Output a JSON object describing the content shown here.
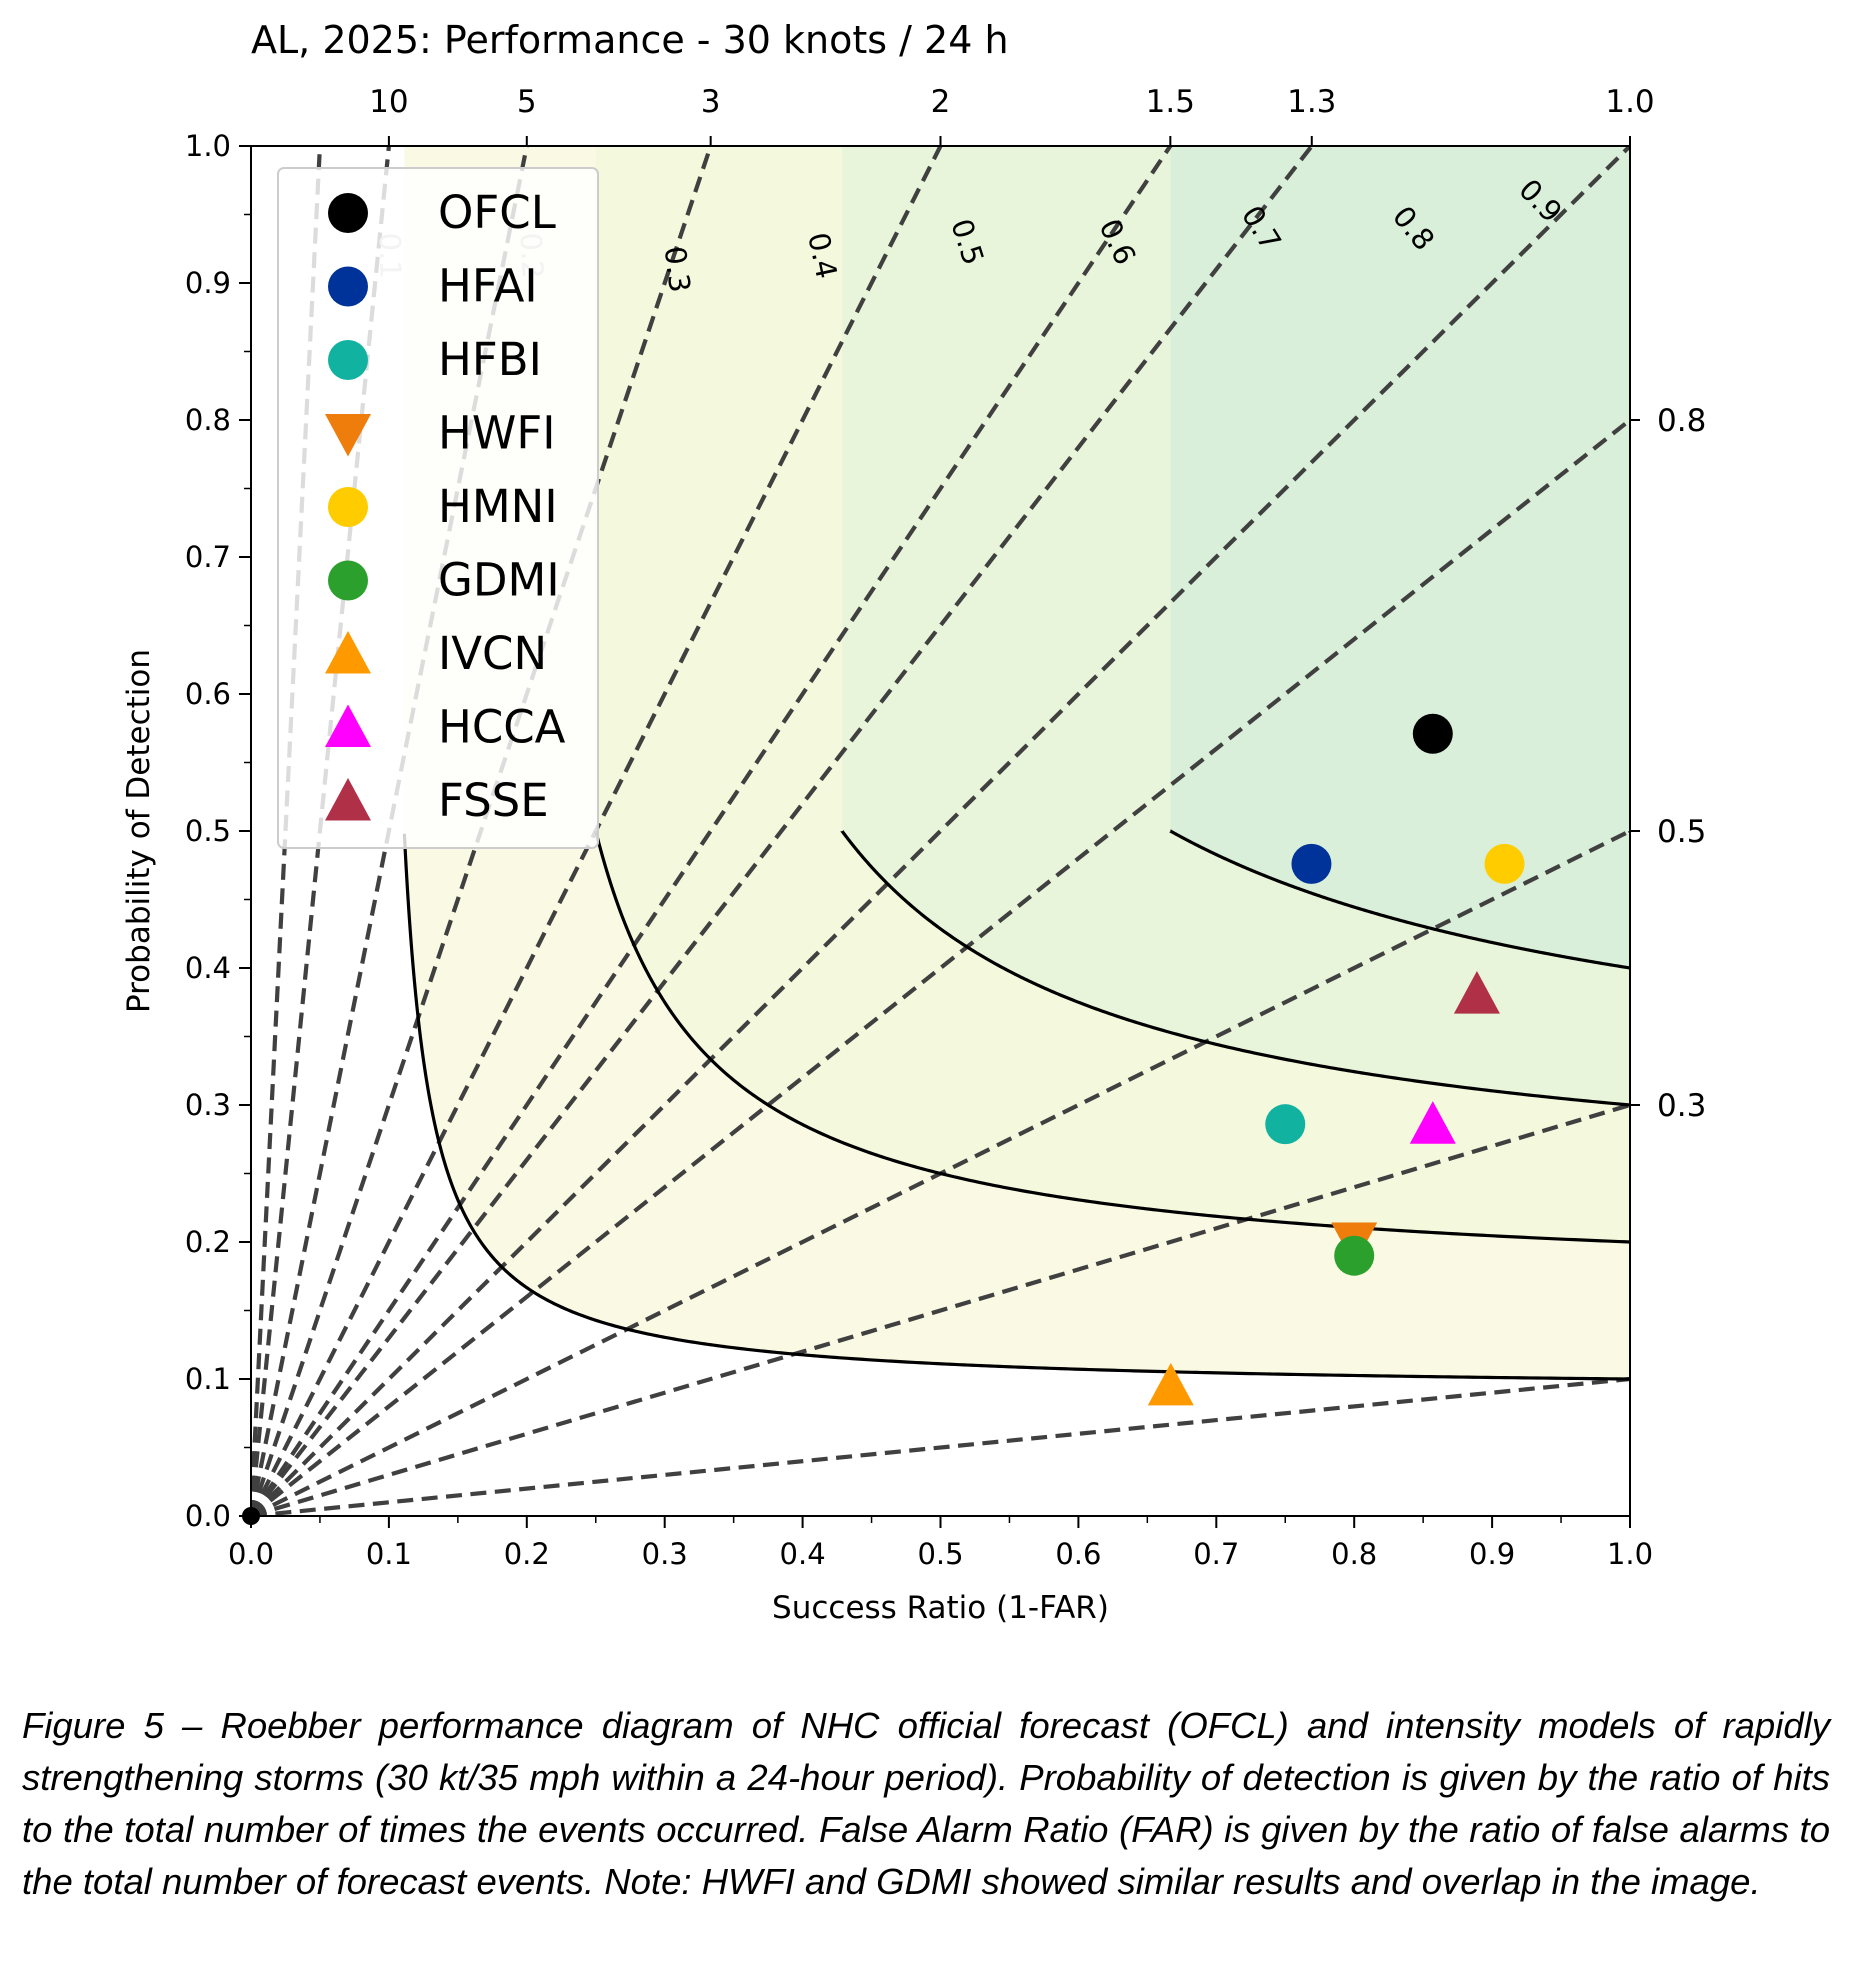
{
  "chart_data": {
    "type": "scatter",
    "subtype": "performance-diagram",
    "title": "AL, 2025: Performance - 30 knots / 24 h",
    "xlabel": "Success Ratio (1-FAR)",
    "ylabel": "Probability of Detection",
    "xlim": [
      0,
      1
    ],
    "ylim": [
      0,
      1
    ],
    "x_ticks": [
      "0.0",
      "0.1",
      "0.2",
      "0.3",
      "0.4",
      "0.5",
      "0.6",
      "0.7",
      "0.8",
      "0.9",
      "1.0"
    ],
    "y_ticks": [
      "0.0",
      "0.1",
      "0.2",
      "0.3",
      "0.4",
      "0.5",
      "0.6",
      "0.7",
      "0.8",
      "0.9",
      "1.0"
    ],
    "csi_contours": [
      {
        "value": 0.1,
        "label": "0.1"
      },
      {
        "value": 0.2,
        "label": "0.2"
      },
      {
        "value": 0.3,
        "label": "0.3"
      },
      {
        "value": 0.4,
        "label": "0.4"
      },
      {
        "value": 0.5,
        "label": "0.5"
      },
      {
        "value": 0.6,
        "label": "0.6"
      },
      {
        "value": 0.7,
        "label": "0.7"
      },
      {
        "value": 0.8,
        "label": "0.8"
      },
      {
        "value": 0.9,
        "label": "0.9"
      }
    ],
    "bias_lines": [
      {
        "value": 10,
        "label": "10",
        "axis": "top"
      },
      {
        "value": 5,
        "label": "5",
        "axis": "top"
      },
      {
        "value": 3,
        "label": "3",
        "axis": "top"
      },
      {
        "value": 2,
        "label": "2",
        "axis": "top"
      },
      {
        "value": 1.5,
        "label": "1.5",
        "axis": "top"
      },
      {
        "value": 1.3,
        "label": "1.3",
        "axis": "top"
      },
      {
        "value": 1.0,
        "label": "1.0",
        "axis": "top"
      },
      {
        "value": 0.8,
        "label": "0.8",
        "axis": "right"
      },
      {
        "value": 0.5,
        "label": "0.5",
        "axis": "right"
      },
      {
        "value": 0.3,
        "label": "0.3",
        "axis": "right"
      },
      {
        "value": 20,
        "label": "",
        "axis": "none"
      },
      {
        "value": 0.1,
        "label": "",
        "axis": "none"
      }
    ],
    "series": [
      {
        "name": "OFCL",
        "marker": "circle",
        "color": "#000000",
        "x": 0.857,
        "y": 0.571
      },
      {
        "name": "HFAI",
        "marker": "circle",
        "color": "#003399",
        "x": 0.769,
        "y": 0.476
      },
      {
        "name": "HFBI",
        "marker": "circle",
        "color": "#11b3a0",
        "x": 0.75,
        "y": 0.286
      },
      {
        "name": "HWFI",
        "marker": "triangle-down",
        "color": "#ee7d0b",
        "x": 0.8,
        "y": 0.2
      },
      {
        "name": "HMNI",
        "marker": "circle",
        "color": "#ffcc00",
        "x": 0.909,
        "y": 0.476
      },
      {
        "name": "GDMI",
        "marker": "circle",
        "color": "#2ca02c",
        "x": 0.8,
        "y": 0.19
      },
      {
        "name": "IVCN",
        "marker": "triangle-up",
        "color": "#ff9900",
        "x": 0.667,
        "y": 0.095
      },
      {
        "name": "HCCA",
        "marker": "triangle-up",
        "color": "#ff00ff",
        "x": 0.857,
        "y": 0.286
      },
      {
        "name": "FSSE",
        "marker": "triangle-up",
        "color": "#b03048",
        "x": 0.889,
        "y": 0.381
      }
    ],
    "legend_position": "upper-left",
    "fill_colors": [
      "#ffffff",
      "#fafae4",
      "#f4f8dc",
      "#e9f5da",
      "#d9efd9",
      "#bfe6dd",
      "#a4dde3",
      "#9ad4e3",
      "#92b7d4",
      "#9a9bcc"
    ]
  },
  "caption": "Figure 5 – Roebber performance diagram of NHC official forecast (OFCL) and intensity models of rapidly strengthening storms (30 kt/35 mph within a 24-hour period).  Probability of detection is given by the ratio of hits to the total number of times the events occurred.  False Alarm Ratio (FAR) is given by the ratio of false alarms to the total number of forecast events.  Note: HWFI and GDMI showed similar results and overlap in the image."
}
